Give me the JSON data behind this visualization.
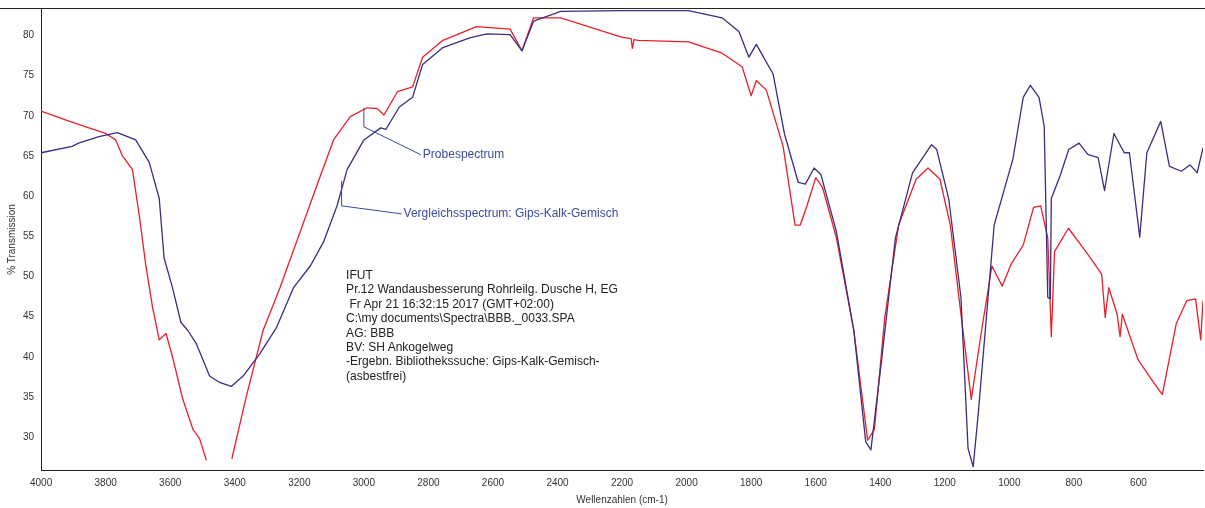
{
  "chart_data": {
    "type": "line",
    "xlabel": "Wellenzahlen (cm-1)",
    "ylabel": "% Transmission",
    "xlim": [
      4000,
      400
    ],
    "ylim": [
      25.9,
      83.3
    ],
    "xticks": [
      4000,
      3800,
      3600,
      3400,
      3200,
      3000,
      2800,
      2600,
      2400,
      2200,
      2000,
      1800,
      1600,
      1400,
      1200,
      1000,
      800,
      600
    ],
    "yticks": [
      30,
      35,
      40,
      45,
      50,
      55,
      60,
      65,
      70,
      75,
      80
    ],
    "grid": false,
    "legend": false,
    "marker": "none",
    "line_style": "solid",
    "series": [
      {
        "color": "#3c2d80",
        "x": [
          4000,
          3904,
          3884,
          3821,
          3764,
          3707,
          3665,
          3634,
          3619,
          3593,
          3567,
          3546,
          3520,
          3478,
          3447,
          3411,
          3374,
          3322,
          3270,
          3218,
          3166,
          3125,
          3083,
          3052,
          3000,
          2948,
          2932,
          2890,
          2849,
          2818,
          2755,
          2672,
          2619,
          2547,
          2510,
          2474,
          2390,
          2202,
          1994,
          1890,
          1838,
          1807,
          1784,
          1732,
          1697,
          1654,
          1632,
          1605,
          1584,
          1536,
          1482,
          1445,
          1429,
          1397,
          1353,
          1300,
          1241,
          1225,
          1188,
          1150,
          1128,
          1112,
          1096,
          1047,
          989,
          957,
          935,
          908,
          892,
          881,
          873,
          870,
          843,
          816,
          784,
          757,
          725,
          705,
          676,
          644,
          628,
          596,
          574,
          531,
          504,
          467,
          440,
          418,
          400
        ],
        "values": [
          65.4,
          66.2,
          66.6,
          67.4,
          67.9,
          67.0,
          64.2,
          59.7,
          52.3,
          48.6,
          44.3,
          43.3,
          41.7,
          37.6,
          36.8,
          36.3,
          37.6,
          40.4,
          43.7,
          48.6,
          51.3,
          54.3,
          58.8,
          63.3,
          67.0,
          68.5,
          68.3,
          71.1,
          72.3,
          76.4,
          78.5,
          79.7,
          80.2,
          80.1,
          78.1,
          81.8,
          83.0,
          83.1,
          83.1,
          82.2,
          80.5,
          77.3,
          78.9,
          75.2,
          67.8,
          61.7,
          61.5,
          63.5,
          62.7,
          55.6,
          43.3,
          29.4,
          28.4,
          39.2,
          54.8,
          62.9,
          66.4,
          65.8,
          59.7,
          47.4,
          28.6,
          26.3,
          33.1,
          56.4,
          64.6,
          72.3,
          73.8,
          72.3,
          68.7,
          47.4,
          47.2,
          59.7,
          62.5,
          65.8,
          66.6,
          65.2,
          64.8,
          60.7,
          67.8,
          65.4,
          65.4,
          54.9,
          65.4,
          69.3,
          63.7,
          63.1,
          63.9,
          62.9,
          66.0
        ]
      },
      {
        "color": "#e8202a",
        "x": [
          4000,
          3925,
          3852,
          3800,
          3769,
          3748,
          3717,
          3696,
          3676,
          3655,
          3634,
          3613,
          3593,
          3561,
          3530,
          3509,
          3488,
          3450,
          3409,
          3364,
          3312,
          3260,
          3197,
          3146,
          3094,
          3042,
          2990,
          2958,
          2938,
          2896,
          2849,
          2818,
          2755,
          2651,
          2547,
          2510,
          2474,
          2390,
          2202,
          2172,
          2168,
          2163,
          2150,
          1994,
          1890,
          1828,
          1800,
          1784,
          1753,
          1701,
          1664,
          1648,
          1627,
          1600,
          1579,
          1536,
          1482,
          1439,
          1418,
          1386,
          1343,
          1289,
          1252,
          1215,
          1183,
          1150,
          1118,
          1086,
          1054,
          1022,
          995,
          957,
          925,
          903,
          881,
          870,
          860,
          817,
          763,
          714,
          703,
          692,
          666,
          657,
          650,
          601,
          558,
          526,
          483,
          450,
          423,
          407,
          400
        ],
        "values": [
          70.6,
          69.5,
          68.5,
          67.8,
          67.0,
          65.0,
          63.3,
          57.6,
          51.5,
          46.2,
          42.1,
          42.9,
          40.0,
          34.7,
          31.0,
          29.8,
          27.1,
          null,
          27.3,
          35.1,
          43.3,
          48.6,
          55.6,
          61.3,
          67.0,
          69.9,
          71.0,
          70.9,
          70.1,
          73.0,
          73.6,
          77.3,
          79.4,
          81.1,
          80.8,
          78.1,
          82.2,
          82.2,
          79.8,
          79.6,
          78.4,
          79.5,
          79.4,
          79.2,
          77.8,
          76.1,
          72.5,
          74.4,
          73.2,
          66.2,
          56.4,
          56.4,
          58.8,
          62.3,
          61.1,
          54.8,
          43.3,
          29.6,
          31.0,
          44.9,
          56.4,
          62.1,
          63.5,
          62.1,
          56.4,
          45.3,
          34.7,
          43.3,
          51.3,
          48.8,
          51.5,
          53.9,
          58.6,
          58.8,
          54.8,
          42.5,
          53.1,
          56.0,
          53.1,
          50.3,
          44.9,
          48.6,
          45.3,
          42.5,
          45.3,
          39.6,
          37.1,
          35.3,
          44.1,
          47.0,
          47.2,
          42.1,
          47.0
        ]
      }
    ],
    "annotations": [
      {
        "text": "Probespectrum",
        "x": 3000,
        "y": 71
      },
      {
        "text": "Vergleichsspectrum: Gips-Kalk-Gemisch",
        "x": 3069,
        "y": 61.9
      },
      "IFUT",
      "Pr.12 Wandausbesserung Rohrleilg. Dusche H, EG",
      " Fr Apr 21 16:32:15 2017 (GMT+02:00)",
      "C:\\my documents\\Spectra\\BBB._0033.SPA",
      "AG: BBB",
      "BV: SH Ankogelweg",
      "-Ergebn. Bibliothekssuche: Gips-Kalk-Gemisch-",
      "(asbestfrei)"
    ]
  }
}
